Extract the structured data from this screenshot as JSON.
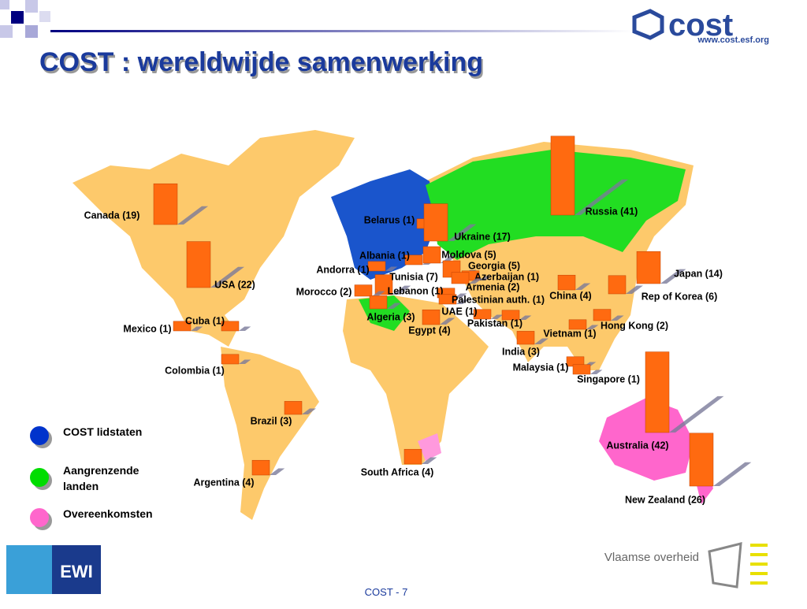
{
  "header": {
    "title": "COST : wereldwijde samenwerking",
    "logo": "cost",
    "url": "www.cost.esf.org"
  },
  "countries": [
    {
      "label": "Canada (19)",
      "value": 19
    },
    {
      "label": "USA (22)",
      "value": 22
    },
    {
      "label": "Mexico (1)",
      "value": 1
    },
    {
      "label": "Cuba (1)",
      "value": 1
    },
    {
      "label": "Colombia (1)",
      "value": 1
    },
    {
      "label": "Brazil (3)",
      "value": 3
    },
    {
      "label": "Argentina (4)",
      "value": 4
    },
    {
      "label": "Belarus (1)",
      "value": 1
    },
    {
      "label": "Russia (41)",
      "value": 41
    },
    {
      "label": "Ukraine (17)",
      "value": 17
    },
    {
      "label": "Albania (1)",
      "value": 1
    },
    {
      "label": "Moldova (5)",
      "value": 5
    },
    {
      "label": "Andorra (1)",
      "value": 1
    },
    {
      "label": "Georgia (5)",
      "value": 5
    },
    {
      "label": "Azerbaijan (1)",
      "value": 1
    },
    {
      "label": "Tunisia (7)",
      "value": 7
    },
    {
      "label": "Armenia (2)",
      "value": 2
    },
    {
      "label": "Lebanon (1)",
      "value": 1
    },
    {
      "label": "Morocco (2)",
      "value": 2
    },
    {
      "label": "Palestinian auth. (1)",
      "value": 1
    },
    {
      "label": "China (4)",
      "value": 4
    },
    {
      "label": "Rep of Korea (6)",
      "value": 6
    },
    {
      "label": "Japan (14)",
      "value": 14
    },
    {
      "label": "Algeria (3)",
      "value": 3
    },
    {
      "label": "UAE (1)",
      "value": 1
    },
    {
      "label": "Egypt (4)",
      "value": 4
    },
    {
      "label": "Pakistan (1)",
      "value": 1
    },
    {
      "label": "Hong Kong (2)",
      "value": 2
    },
    {
      "label": "Vietnam (1)",
      "value": 1
    },
    {
      "label": "India (3)",
      "value": 3
    },
    {
      "label": "Malaysia (1)",
      "value": 1
    },
    {
      "label": "Singapore (1)",
      "value": 1
    },
    {
      "label": "Australia (42)",
      "value": 42
    },
    {
      "label": "New Zealand (26)",
      "value": 26
    },
    {
      "label": "South Africa (4)",
      "value": 4
    }
  ],
  "legend": [
    {
      "label": "COST lidstaten",
      "color": "#0033cc"
    },
    {
      "label": "Aangrenzende landen",
      "color": "#00dd00"
    },
    {
      "label": "Overeenkomsten",
      "color": "#ff66cc"
    }
  ],
  "footer": {
    "page": "COST  - 7",
    "partner": "Vlaamse overheid",
    "logo": "EWI"
  }
}
